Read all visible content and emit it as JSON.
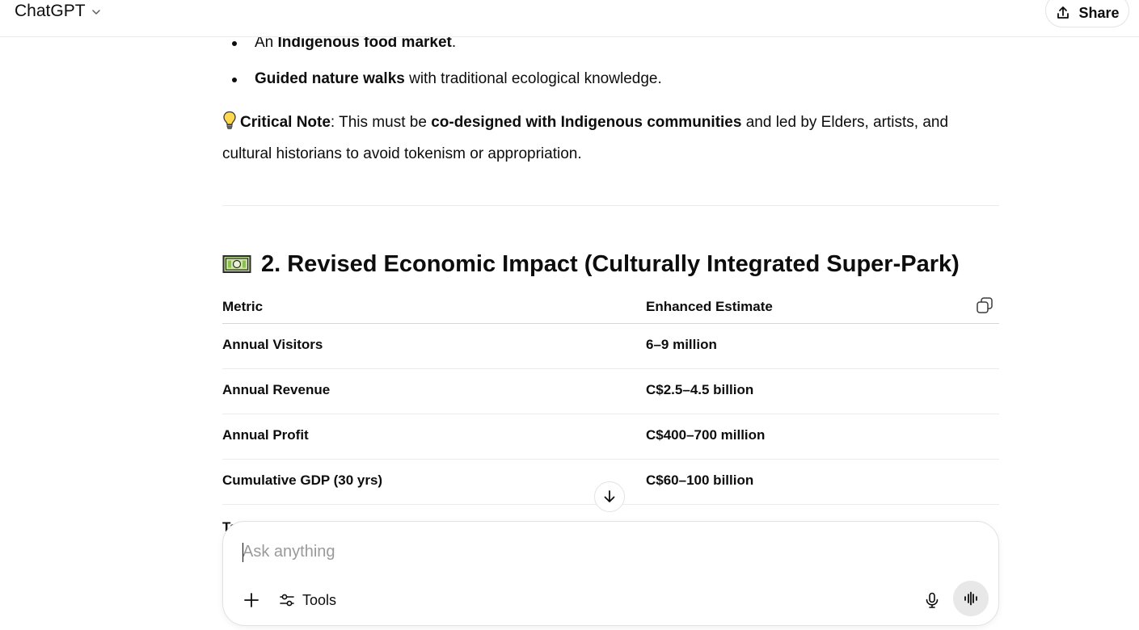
{
  "header": {
    "model_label": "ChatGPT",
    "share_label": "Share"
  },
  "message": {
    "bullets": [
      {
        "parts": [
          {
            "text": "An ",
            "bold": false
          },
          {
            "text": "Indigenous food market",
            "bold": true
          },
          {
            "text": ".",
            "bold": false
          }
        ]
      },
      {
        "parts": [
          {
            "text": "Guided nature walks",
            "bold": true
          },
          {
            "text": " with traditional ecological knowledge.",
            "bold": false
          }
        ]
      }
    ],
    "note": {
      "icon": "lightbulb-icon",
      "parts": [
        {
          "text": "Critical Note",
          "bold": true
        },
        {
          "text": ": This must be ",
          "bold": false
        },
        {
          "text": "co-designed with Indigenous communities",
          "bold": true
        },
        {
          "text": " and led by Elders, artists, and cultural historians to avoid tokenism or appropriation.",
          "bold": false
        }
      ]
    },
    "section_heading": "2. Revised Economic Impact (Culturally Integrated Super-Park)",
    "section_icon": "money-icon",
    "table": {
      "headers": [
        "Metric",
        "Enhanced Estimate"
      ],
      "rows": [
        [
          "Annual Visitors",
          "6–9 million"
        ],
        [
          "Annual Revenue",
          "C$2.5–4.5 billion"
        ],
        [
          "Annual Profit",
          "C$400–700 million"
        ],
        [
          "Cumulative GDP (30 yrs)",
          "C$60–100 billion"
        ]
      ],
      "partial_row_text": "Ta"
    }
  },
  "composer": {
    "placeholder": "Ask anything",
    "tools_label": "Tools"
  },
  "colors": {
    "text": "#0d0d0d",
    "border": "#e3e3e3",
    "voice_button_bg": "#e8e8e8"
  }
}
